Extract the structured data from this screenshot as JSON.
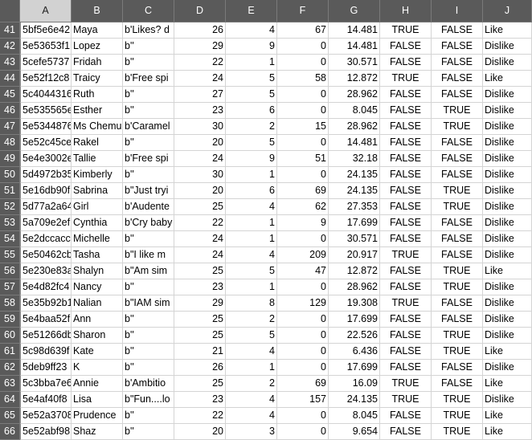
{
  "columns": [
    "A",
    "B",
    "C",
    "D",
    "E",
    "F",
    "G",
    "H",
    "I",
    "J"
  ],
  "rows": [
    {
      "n": "41",
      "A": "5bf5e6e42",
      "B": "Maya",
      "C": "b'Likes? d",
      "D": "26",
      "E": "4",
      "F": "67",
      "G": "14.481",
      "H": "TRUE",
      "I": "FALSE",
      "J": "Like"
    },
    {
      "n": "42",
      "A": "5e53653f1",
      "B": "Lopez",
      "C": "b''",
      "D": "29",
      "E": "9",
      "F": "0",
      "G": "14.481",
      "H": "FALSE",
      "I": "FALSE",
      "J": "Dislike"
    },
    {
      "n": "43",
      "A": "5cefe5737",
      "B": "Fridah",
      "C": "b''",
      "D": "22",
      "E": "1",
      "F": "0",
      "G": "30.571",
      "H": "FALSE",
      "I": "FALSE",
      "J": "Dislike"
    },
    {
      "n": "44",
      "A": "5e52f12c8",
      "B": "Traicy",
      "C": "b'Free spi",
      "D": "24",
      "E": "5",
      "F": "58",
      "G": "12.872",
      "H": "TRUE",
      "I": "FALSE",
      "J": "Like"
    },
    {
      "n": "45",
      "A": "5c4044316",
      "B": "Ruth",
      "C": "b''",
      "D": "27",
      "E": "5",
      "F": "0",
      "G": "28.962",
      "H": "FALSE",
      "I": "FALSE",
      "J": "Dislike"
    },
    {
      "n": "46",
      "A": "5e535565e",
      "B": "Esther",
      "C": "b''",
      "D": "23",
      "E": "6",
      "F": "0",
      "G": "8.045",
      "H": "FALSE",
      "I": "TRUE",
      "J": "Dislike"
    },
    {
      "n": "47",
      "A": "5e5344876",
      "B": "Ms Chemu",
      "C": "b'Caramel",
      "D": "30",
      "E": "2",
      "F": "15",
      "G": "28.962",
      "H": "FALSE",
      "I": "TRUE",
      "J": "Dislike"
    },
    {
      "n": "48",
      "A": "5e52c45ce",
      "B": "Rakel",
      "C": "b''",
      "D": "20",
      "E": "5",
      "F": "0",
      "G": "14.481",
      "H": "FALSE",
      "I": "FALSE",
      "J": "Dislike"
    },
    {
      "n": "49",
      "A": "5e4e3002e",
      "B": "Tallie",
      "C": "b'Free spi",
      "D": "24",
      "E": "9",
      "F": "51",
      "G": "32.18",
      "H": "FALSE",
      "I": "FALSE",
      "J": "Dislike"
    },
    {
      "n": "50",
      "A": "5d4972b35",
      "B": "Kimberly",
      "C": "b''",
      "D": "30",
      "E": "1",
      "F": "0",
      "G": "24.135",
      "H": "FALSE",
      "I": "FALSE",
      "J": "Dislike"
    },
    {
      "n": "51",
      "A": "5e16db90f",
      "B": "Sabrina",
      "C": "b\"Just tryi",
      "D": "20",
      "E": "6",
      "F": "69",
      "G": "24.135",
      "H": "FALSE",
      "I": "TRUE",
      "J": "Dislike"
    },
    {
      "n": "52",
      "A": "5d77a2a64",
      "B": "Girl",
      "C": "b'Audente",
      "D": "25",
      "E": "4",
      "F": "62",
      "G": "27.353",
      "H": "FALSE",
      "I": "TRUE",
      "J": "Dislike"
    },
    {
      "n": "53",
      "A": "5a709e2ef",
      "B": "Cynthia",
      "C": "b'Cry baby",
      "D": "22",
      "E": "1",
      "F": "9",
      "G": "17.699",
      "H": "FALSE",
      "I": "FALSE",
      "J": "Dislike"
    },
    {
      "n": "54",
      "A": "5e2dccacc",
      "B": "Michelle",
      "C": "b''",
      "D": "24",
      "E": "1",
      "F": "0",
      "G": "30.571",
      "H": "FALSE",
      "I": "FALSE",
      "J": "Dislike"
    },
    {
      "n": "55",
      "A": "5e50462cb",
      "B": "Tasha",
      "C": "b\"I like m",
      "D": "24",
      "E": "4",
      "F": "209",
      "G": "20.917",
      "H": "TRUE",
      "I": "FALSE",
      "J": "Dislike"
    },
    {
      "n": "56",
      "A": "5e230e83a",
      "B": "Shalyn",
      "C": "b\"Am sim",
      "D": "25",
      "E": "5",
      "F": "47",
      "G": "12.872",
      "H": "FALSE",
      "I": "TRUE",
      "J": "Like"
    },
    {
      "n": "57",
      "A": "5e4d82fc4",
      "B": "Nancy",
      "C": "b''",
      "D": "23",
      "E": "1",
      "F": "0",
      "G": "28.962",
      "H": "FALSE",
      "I": "TRUE",
      "J": "Dislike"
    },
    {
      "n": "58",
      "A": "5e35b92b1",
      "B": "Nalian",
      "C": "b\"IAM sim",
      "D": "29",
      "E": "8",
      "F": "129",
      "G": "19.308",
      "H": "TRUE",
      "I": "FALSE",
      "J": "Dislike"
    },
    {
      "n": "59",
      "A": "5e4baa52f",
      "B": "Ann",
      "C": "b''",
      "D": "25",
      "E": "2",
      "F": "0",
      "G": "17.699",
      "H": "FALSE",
      "I": "FALSE",
      "J": "Dislike"
    },
    {
      "n": "60",
      "A": "5e51266db",
      "B": "Sharon",
      "C": "b''",
      "D": "25",
      "E": "5",
      "F": "0",
      "G": "22.526",
      "H": "FALSE",
      "I": "TRUE",
      "J": "Dislike"
    },
    {
      "n": "61",
      "A": "5c98d639f",
      "B": "Kate",
      "C": "b''",
      "D": "21",
      "E": "4",
      "F": "0",
      "G": "6.436",
      "H": "FALSE",
      "I": "TRUE",
      "J": "Like"
    },
    {
      "n": "62",
      "A": "5deb9ff23",
      "B": "K",
      "C": "b''",
      "D": "26",
      "E": "1",
      "F": "0",
      "G": "17.699",
      "H": "FALSE",
      "I": "FALSE",
      "J": "Dislike"
    },
    {
      "n": "63",
      "A": "5c3bba7e6",
      "B": "Annie",
      "C": "b'Ambitio",
      "D": "25",
      "E": "2",
      "F": "69",
      "G": "16.09",
      "H": "TRUE",
      "I": "FALSE",
      "J": "Like"
    },
    {
      "n": "64",
      "A": "5e4af40f8",
      "B": "Lisa",
      "C": "b\"Fun....lo",
      "D": "23",
      "E": "4",
      "F": "157",
      "G": "24.135",
      "H": "TRUE",
      "I": "TRUE",
      "J": "Dislike"
    },
    {
      "n": "65",
      "A": "5e52a3708",
      "B": "Prudence",
      "C": "b''",
      "D": "22",
      "E": "4",
      "F": "0",
      "G": "8.045",
      "H": "FALSE",
      "I": "TRUE",
      "J": "Like"
    },
    {
      "n": "66",
      "A": "5e52abf98",
      "B": "Shaz",
      "C": "b''",
      "D": "20",
      "E": "3",
      "F": "0",
      "G": "9.654",
      "H": "FALSE",
      "I": "TRUE",
      "J": "Like"
    }
  ],
  "colors": {
    "header_bg": "#5a5a5a",
    "selected_header_bg": "#d2d2d2",
    "gridline": "#d4d4d4"
  }
}
